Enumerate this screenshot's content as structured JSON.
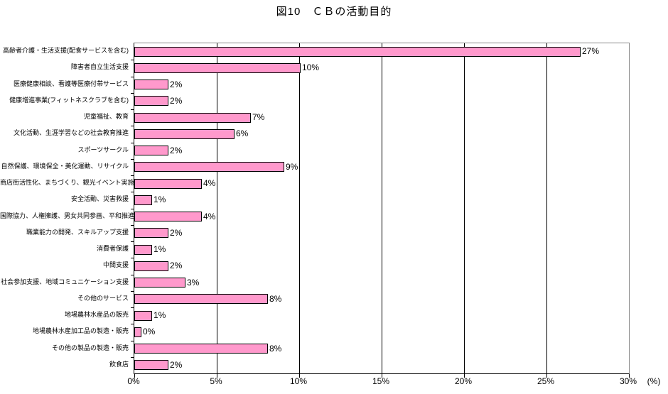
{
  "chart_data": {
    "type": "bar",
    "orientation": "horizontal",
    "title": "図10　ＣＢの活動目的",
    "categories": [
      "高齢者介護・生活支援(配食サービスを含む)",
      "障害者自立生活支援",
      "医療健康相談、看護等医療付帯サービス",
      "健康増進事業(フィットネスクラブを含む)",
      "児童福祉、教育",
      "文化活動、生涯学習などの社会教育推進",
      "スポーツサークル",
      "自然保護、環境保全・美化運動、リサイクル",
      "商店街活性化、まちづくり、観光イベント実施",
      "安全活動、災害救援",
      "国際協力、人権擁護、男女共同参画、平和推進",
      "職業能力の開発、スキルアップ支援",
      "消費者保護",
      "中間支援",
      "社会参加支援、地域コミュニケーション支援",
      "その他のサービス",
      "地場農林水産品の販売",
      "地場農林水産加工品の製造・販売",
      "その他の製品の製造・販売",
      "飲食店"
    ],
    "values": [
      27,
      10,
      2,
      2,
      7,
      6,
      2,
      9,
      4,
      1,
      4,
      2,
      1,
      2,
      3,
      8,
      1,
      0,
      8,
      2
    ],
    "value_labels": [
      "27%",
      "10%",
      "2%",
      "2%",
      "7%",
      "6%",
      "2%",
      "9%",
      "4%",
      "1%",
      "4%",
      "2%",
      "1%",
      "2%",
      "3%",
      "8%",
      "1%",
      "0%",
      "8%",
      "2%"
    ],
    "xlabel": "(%)",
    "xlim": [
      0,
      30
    ],
    "x_tick_values": [
      0,
      5,
      10,
      15,
      20,
      25,
      30
    ],
    "x_tick_labels": [
      "0%",
      "5%",
      "10%",
      "15%",
      "20%",
      "25%",
      "30%"
    ],
    "grid": true,
    "legend": "none",
    "bar_color": "#FF99CC",
    "bar_border_color": "#000000",
    "gridline_color": "#000000",
    "plot_border_color": "#888888"
  }
}
